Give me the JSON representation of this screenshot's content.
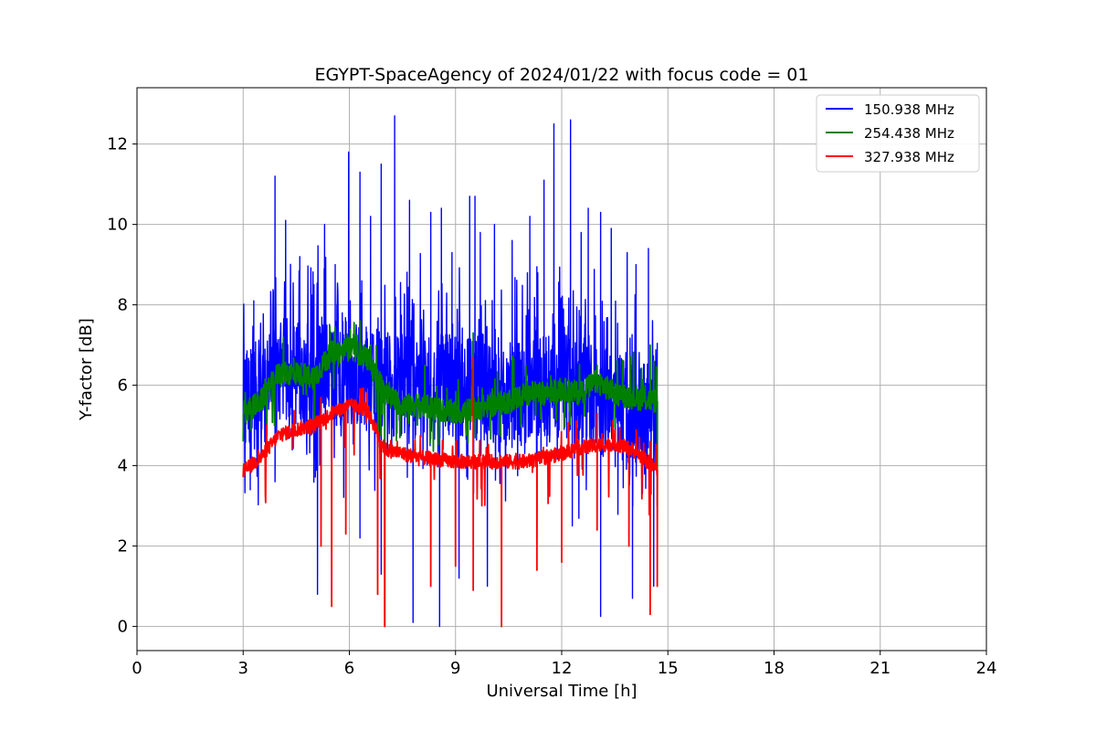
{
  "chart_data": {
    "type": "line",
    "title": "EGYPT-SpaceAgency of 2024/01/22 with focus code = 01",
    "xlabel": "Universal Time [h]",
    "ylabel": "Y-factor [dB]",
    "xlim": [
      0,
      24
    ],
    "ylim": [
      -0.6,
      13.4
    ],
    "xticks": [
      0,
      3,
      6,
      9,
      12,
      15,
      18,
      21,
      24
    ],
    "xtick_labels": [
      "0",
      "3",
      "6",
      "9",
      "12",
      "15",
      "18",
      "21",
      "24"
    ],
    "yticks": [
      0,
      2,
      4,
      6,
      8,
      10,
      12
    ],
    "ytick_labels": [
      "0",
      "2",
      "4",
      "6",
      "8",
      "10",
      "12"
    ],
    "grid": true,
    "legend_position": "top-right",
    "series": [
      {
        "name": "150.938 MHz",
        "color": "#0000ff",
        "baseline": [
          [
            3.0,
            5.6
          ],
          [
            3.5,
            5.8
          ],
          [
            4.0,
            6.4
          ],
          [
            5.0,
            6.2
          ],
          [
            6.0,
            6.3
          ],
          [
            7.0,
            6.1
          ],
          [
            8.0,
            6.0
          ],
          [
            9.0,
            6.0
          ],
          [
            10.0,
            5.9
          ],
          [
            11.0,
            5.8
          ],
          [
            12.0,
            6.0
          ],
          [
            13.0,
            5.6
          ],
          [
            14.0,
            5.4
          ],
          [
            14.7,
            5.2
          ]
        ],
        "spikes": [
          [
            3.3,
            8.1
          ],
          [
            3.9,
            11.2
          ],
          [
            4.2,
            10.1
          ],
          [
            4.6,
            9.2
          ],
          [
            5.0,
            8.5
          ],
          [
            5.3,
            10.0
          ],
          [
            5.6,
            9.0
          ],
          [
            5.8,
            7.8
          ],
          [
            5.98,
            11.8
          ],
          [
            6.3,
            11.3
          ],
          [
            6.6,
            10.2
          ],
          [
            6.9,
            11.5
          ],
          [
            7.28,
            12.7
          ],
          [
            7.7,
            10.6
          ],
          [
            8.3,
            10.3
          ],
          [
            8.6,
            10.4
          ],
          [
            8.9,
            9.3
          ],
          [
            9.4,
            10.7
          ],
          [
            9.55,
            10.7
          ],
          [
            9.7,
            9.8
          ],
          [
            10.1,
            10.0
          ],
          [
            10.6,
            9.6
          ],
          [
            11.1,
            10.2
          ],
          [
            11.5,
            11.1
          ],
          [
            11.78,
            12.5
          ],
          [
            12.25,
            12.6
          ],
          [
            12.55,
            9.8
          ],
          [
            12.75,
            10.4
          ],
          [
            13.1,
            10.3
          ],
          [
            13.4,
            9.9
          ],
          [
            13.85,
            9.3
          ],
          [
            14.1,
            9.0
          ],
          [
            14.45,
            9.4
          ]
        ],
        "dips": [
          [
            3.2,
            3.4
          ],
          [
            3.9,
            3.6
          ],
          [
            5.1,
            0.8
          ],
          [
            5.5,
            0.8
          ],
          [
            6.3,
            2.2
          ],
          [
            6.9,
            1.3
          ],
          [
            7.8,
            0.1
          ],
          [
            8.55,
            0.0
          ],
          [
            9.1,
            1.2
          ],
          [
            9.9,
            1.0
          ],
          [
            11.3,
            2.2
          ],
          [
            12.3,
            2.5
          ],
          [
            13.1,
            0.25
          ],
          [
            14.0,
            0.7
          ],
          [
            14.6,
            1.0
          ]
        ]
      },
      {
        "name": "254.438 MHz",
        "color": "#008000",
        "baseline": [
          [
            3.0,
            5.3
          ],
          [
            3.5,
            5.6
          ],
          [
            4.0,
            6.3
          ],
          [
            4.5,
            6.3
          ],
          [
            5.0,
            6.2
          ],
          [
            5.5,
            6.8
          ],
          [
            6.0,
            6.9
          ],
          [
            6.5,
            6.7
          ],
          [
            7.0,
            5.8
          ],
          [
            7.5,
            5.5
          ],
          [
            8.0,
            5.5
          ],
          [
            9.0,
            5.3
          ],
          [
            10.0,
            5.5
          ],
          [
            10.5,
            5.6
          ],
          [
            11.0,
            5.8
          ],
          [
            11.5,
            5.8
          ],
          [
            12.0,
            5.9
          ],
          [
            12.5,
            5.8
          ],
          [
            13.0,
            6.1
          ],
          [
            13.5,
            5.8
          ],
          [
            14.0,
            5.7
          ],
          [
            14.7,
            5.6
          ]
        ],
        "spikes": [
          [
            6.3,
            7.6
          ],
          [
            6.6,
            7.0
          ],
          [
            9.5,
            7.3
          ],
          [
            13.0,
            6.5
          ],
          [
            14.5,
            7.0
          ]
        ],
        "dips": [
          [
            7.0,
            0.02
          ],
          [
            14.7,
            3.0
          ]
        ]
      },
      {
        "name": "327.938 MHz",
        "color": "#ff0000",
        "baseline": [
          [
            3.0,
            3.85
          ],
          [
            3.5,
            4.2
          ],
          [
            4.0,
            4.75
          ],
          [
            4.5,
            4.9
          ],
          [
            5.0,
            5.0
          ],
          [
            5.5,
            5.3
          ],
          [
            6.0,
            5.5
          ],
          [
            6.5,
            5.4
          ],
          [
            7.0,
            4.4
          ],
          [
            7.5,
            4.3
          ],
          [
            8.0,
            4.2
          ],
          [
            9.0,
            4.1
          ],
          [
            10.0,
            4.1
          ],
          [
            11.0,
            4.1
          ],
          [
            11.5,
            4.2
          ],
          [
            12.0,
            4.3
          ],
          [
            12.5,
            4.45
          ],
          [
            13.0,
            4.5
          ],
          [
            13.5,
            4.55
          ],
          [
            14.0,
            4.4
          ],
          [
            14.7,
            3.9
          ]
        ],
        "spikes": [
          [
            6.5,
            5.8
          ],
          [
            9.5,
            6.7
          ],
          [
            13.0,
            5.3
          ],
          [
            14.2,
            4.7
          ],
          [
            14.5,
            4.6
          ]
        ],
        "dips": [
          [
            5.2,
            2.0
          ],
          [
            5.5,
            0.5
          ],
          [
            5.9,
            2.3
          ],
          [
            6.8,
            0.8
          ],
          [
            7.0,
            0.0
          ],
          [
            8.3,
            1.0
          ],
          [
            9.0,
            1.5
          ],
          [
            9.5,
            0.9
          ],
          [
            10.3,
            0.0
          ],
          [
            11.3,
            1.4
          ],
          [
            12.0,
            1.6
          ],
          [
            13.0,
            2.4
          ],
          [
            13.9,
            2.0
          ],
          [
            14.5,
            0.3
          ],
          [
            14.7,
            1.0
          ]
        ]
      }
    ]
  }
}
